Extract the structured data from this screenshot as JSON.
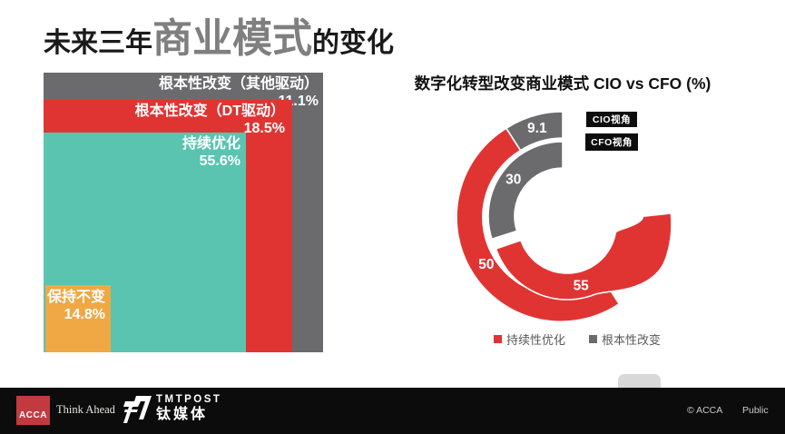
{
  "slide": {
    "title": {
      "prefix": "未来三年",
      "highlight": "商业模式",
      "suffix": "的变化"
    },
    "colors": {
      "red": "#e03433",
      "teal": "#5ac4b1",
      "orange": "#f0a844",
      "gray": "#6b6b6e",
      "title_highlight": "#7f7f7f"
    }
  },
  "chart_data": [
    {
      "type": "bar",
      "variant": "nested-squares",
      "title": "未来三年商业模式的变化",
      "unit": "%",
      "segments": [
        {
          "label": "根本性改变（其他驱动）",
          "value": 11.1,
          "value_label": "11.1%",
          "color": "#6b6b6e"
        },
        {
          "label": "根本性改变（DT驱动）",
          "value": 18.5,
          "value_label": "18.5%",
          "color": "#e03433"
        },
        {
          "label": "持续优化",
          "value": 55.6,
          "value_label": "55.6%",
          "color": "#5ac4b1"
        },
        {
          "label": "保持不变",
          "value": 14.8,
          "value_label": "14.8%",
          "color": "#f0a844"
        }
      ]
    },
    {
      "type": "pie",
      "variant": "double-doughnut",
      "title": "数字化转型改变商业模式 CIO vs CFO (%)",
      "rings": [
        {
          "name": "CIO视角",
          "position": "outer",
          "segments": [
            {
              "label": "根本性改变",
              "value": 9.1,
              "color": "#6b6b6e"
            },
            {
              "label": "持续性优化",
              "value": 50,
              "color": "#e03433"
            }
          ]
        },
        {
          "name": "CFO视角",
          "position": "inner",
          "segments": [
            {
              "label": "根本性改变",
              "value": 30,
              "color": "#6b6b6e"
            },
            {
              "label": "持续性优化",
              "value": 55,
              "color": "#e03433",
              "tapered": true
            }
          ]
        }
      ],
      "legend": [
        {
          "label": "持续性优化",
          "color": "#e03433"
        },
        {
          "label": "根本性改变",
          "color": "#6b6b6e"
        }
      ]
    }
  ],
  "footer": {
    "acca_logo": "ACCA",
    "tagline": "Think Ahead",
    "tmt_name": "TMTPOST",
    "tmt_cn": "钛媒体",
    "copyright": "© ACCA",
    "classification": "Public"
  }
}
